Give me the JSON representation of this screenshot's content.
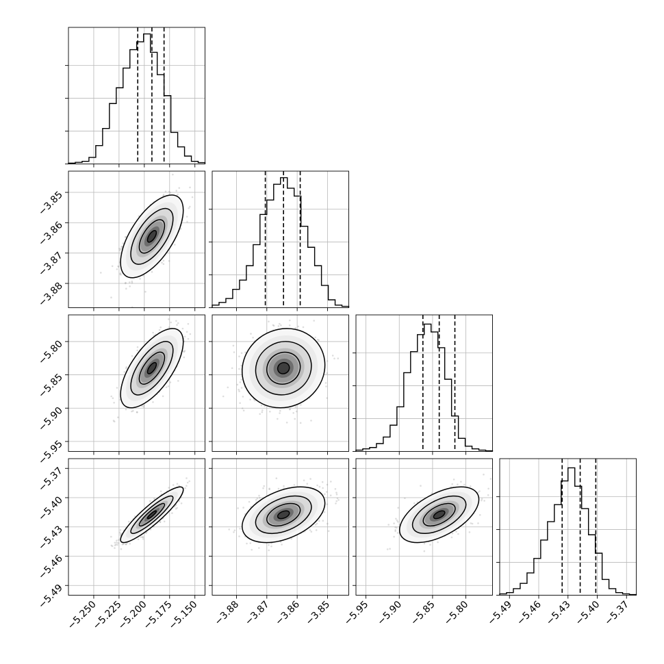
{
  "chart_data": {
    "type": "corner",
    "grid": true,
    "parameters": [
      {
        "index": 0,
        "range": [
          -5.275,
          -5.14
        ],
        "ticks": [
          -5.25,
          -5.225,
          -5.2,
          -5.175,
          -5.15
        ],
        "tick_labels": [
          "−5.250",
          "−5.225",
          "−5.200",
          "−5.175",
          "−5.150"
        ],
        "quantiles": [
          -5.2065,
          -5.1925,
          -5.1805
        ],
        "mean": -5.1925,
        "sd": 0.0125,
        "hist_bins": [
          0.006,
          0.012,
          0.02,
          0.05,
          0.14,
          0.27,
          0.46,
          0.58,
          0.73,
          0.87,
          0.93,
          0.99,
          0.85,
          0.68,
          0.52,
          0.24,
          0.13,
          0.06,
          0.02,
          0.01
        ]
      },
      {
        "index": 1,
        "range": [
          -3.888,
          -3.843
        ],
        "ticks": [
          -3.88,
          -3.87,
          -3.86,
          -3.85
        ],
        "tick_labels": [
          "−3.88",
          "−3.87",
          "−3.86",
          "−3.85"
        ],
        "quantiles": [
          -3.8705,
          -3.8645,
          -3.859
        ],
        "mean": -3.8645,
        "sd": 0.0055,
        "hist_bins": [
          0.02,
          0.04,
          0.07,
          0.14,
          0.21,
          0.32,
          0.48,
          0.71,
          0.82,
          0.94,
          0.99,
          0.91,
          0.85,
          0.62,
          0.46,
          0.32,
          0.17,
          0.06,
          0.02,
          0.01
        ]
      },
      {
        "index": 2,
        "range": [
          -5.965,
          -5.76
        ],
        "ticks": [
          -5.95,
          -5.9,
          -5.85,
          -5.8
        ],
        "tick_labels": [
          "−5.95",
          "−5.90",
          "−5.85",
          "−5.80"
        ],
        "quantiles": [
          -5.8645,
          -5.84,
          -5.8165
        ],
        "mean": -5.84,
        "sd": 0.024,
        "hist_bins": [
          0.01,
          0.02,
          0.03,
          0.06,
          0.11,
          0.2,
          0.34,
          0.6,
          0.76,
          0.89,
          0.97,
          0.91,
          0.79,
          0.55,
          0.27,
          0.1,
          0.04,
          0.02,
          0.01,
          0.005
        ]
      },
      {
        "index": 3,
        "range": [
          -5.5,
          -5.36
        ],
        "ticks": [
          -5.49,
          -5.46,
          -5.43,
          -5.4,
          -5.37
        ],
        "tick_labels": [
          "−5.49",
          "−5.46",
          "−5.43",
          "−5.40",
          "−5.37"
        ],
        "quantiles": [
          -5.436,
          -5.4175,
          -5.4015
        ],
        "mean": -5.4175,
        "sd": 0.0115,
        "hist_bins": [
          0.01,
          0.02,
          0.05,
          0.09,
          0.17,
          0.28,
          0.42,
          0.56,
          0.69,
          0.87,
          0.97,
          0.83,
          0.66,
          0.46,
          0.32,
          0.12,
          0.05,
          0.02,
          0.01,
          0.005
        ]
      }
    ],
    "correlations": {
      "1-0": 0.63,
      "2-0": 0.66,
      "2-1": 0.08,
      "3-0": 0.9,
      "3-1": 0.42,
      "3-2": 0.55
    }
  }
}
